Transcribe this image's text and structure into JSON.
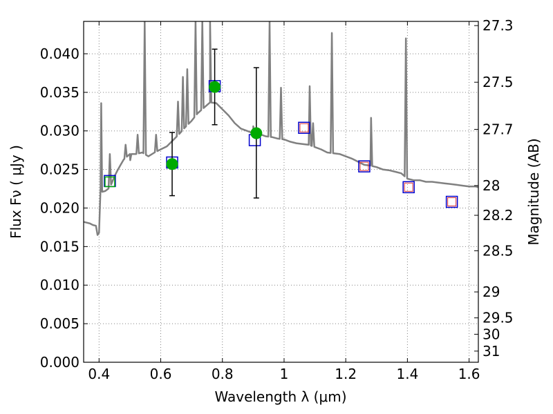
{
  "chart_data": {
    "type": "scatter",
    "xlabel": "Wavelength  λ (μm)",
    "ylabel": "Flux  Fν  ( μJy )",
    "ylabel_right": "Magnitude (AB)",
    "xlim": [
      0.35,
      1.63
    ],
    "ylim": [
      0.0,
      0.0442
    ],
    "grid": true,
    "x_ticks": [
      0.4,
      0.6,
      0.8,
      1.0,
      1.2,
      1.4,
      1.6
    ],
    "x_tick_labels": [
      "0.4",
      "0.6",
      "0.8",
      "1",
      "1.2",
      "1.4",
      "1.6"
    ],
    "y_ticks": [
      0.0,
      0.005,
      0.01,
      0.015,
      0.02,
      0.025,
      0.03,
      0.035,
      0.04
    ],
    "y_tick_labels": [
      "0.000",
      "0.005",
      "0.010",
      "0.015",
      "0.020",
      "0.025",
      "0.030",
      "0.035",
      "0.040"
    ],
    "mag_ticks": [
      "27.3",
      "27.5",
      "27.7",
      "28",
      "28.2",
      "28.5",
      "29",
      "29.5",
      "30",
      "31"
    ],
    "colors": {
      "model": "#808080",
      "observed": "#00aa00",
      "synthetic": "#0000cc",
      "fit": "#dd3333",
      "errorbar": "#000000",
      "grid": "#808080"
    },
    "model_spectrum": {
      "name": "",
      "points": [
        [
          0.35,
          0.0182
        ],
        [
          0.36,
          0.0181
        ],
        [
          0.37,
          0.018
        ],
        [
          0.38,
          0.0178
        ],
        [
          0.39,
          0.0177
        ],
        [
          0.395,
          0.0165
        ],
        [
          0.4,
          0.0168
        ],
        [
          0.405,
          0.0226
        ],
        [
          0.41,
          0.0221
        ],
        [
          0.42,
          0.0222
        ],
        [
          0.43,
          0.0225
        ],
        [
          0.44,
          0.0231
        ],
        [
          0.45,
          0.0241
        ],
        [
          0.46,
          0.0249
        ],
        [
          0.47,
          0.0256
        ],
        [
          0.48,
          0.0263
        ],
        [
          0.5,
          0.027
        ],
        [
          0.52,
          0.027
        ],
        [
          0.54,
          0.0272
        ],
        [
          0.56,
          0.0267
        ],
        [
          0.58,
          0.0272
        ],
        [
          0.6,
          0.0276
        ],
        [
          0.62,
          0.028
        ],
        [
          0.64,
          0.0288
        ],
        [
          0.66,
          0.0296
        ],
        [
          0.68,
          0.0305
        ],
        [
          0.7,
          0.0313
        ],
        [
          0.72,
          0.0323
        ],
        [
          0.74,
          0.033
        ],
        [
          0.76,
          0.0337
        ],
        [
          0.78,
          0.0336
        ],
        [
          0.8,
          0.0328
        ],
        [
          0.82,
          0.032
        ],
        [
          0.84,
          0.031
        ],
        [
          0.86,
          0.0303
        ],
        [
          0.88,
          0.03
        ],
        [
          0.9,
          0.0297
        ],
        [
          0.92,
          0.0296
        ],
        [
          0.94,
          0.0293
        ],
        [
          0.96,
          0.0292
        ],
        [
          0.98,
          0.029
        ],
        [
          1.0,
          0.0289
        ],
        [
          1.02,
          0.0286
        ],
        [
          1.04,
          0.0284
        ],
        [
          1.06,
          0.0283
        ],
        [
          1.08,
          0.0282
        ],
        [
          1.1,
          0.0279
        ],
        [
          1.12,
          0.0276
        ],
        [
          1.14,
          0.0272
        ],
        [
          1.16,
          0.0271
        ],
        [
          1.18,
          0.027
        ],
        [
          1.2,
          0.0267
        ],
        [
          1.22,
          0.0264
        ],
        [
          1.24,
          0.026
        ],
        [
          1.26,
          0.0256
        ],
        [
          1.28,
          0.0255
        ],
        [
          1.3,
          0.0253
        ],
        [
          1.32,
          0.025
        ],
        [
          1.34,
          0.0249
        ],
        [
          1.36,
          0.0247
        ],
        [
          1.38,
          0.0245
        ],
        [
          1.4,
          0.0238
        ],
        [
          1.42,
          0.0236
        ],
        [
          1.44,
          0.0236
        ],
        [
          1.46,
          0.0234
        ],
        [
          1.48,
          0.0234
        ],
        [
          1.5,
          0.0233
        ],
        [
          1.52,
          0.0232
        ],
        [
          1.54,
          0.0231
        ],
        [
          1.56,
          0.023
        ],
        [
          1.58,
          0.0229
        ],
        [
          1.6,
          0.0228
        ],
        [
          1.62,
          0.0228
        ],
        [
          1.63,
          0.0227
        ]
      ],
      "emission_lines": [
        [
          0.407,
          0.0336
        ],
        [
          0.435,
          0.027
        ],
        [
          0.486,
          0.0282
        ],
        [
          0.501,
          0.0262
        ],
        [
          0.525,
          0.0295
        ],
        [
          0.548,
          0.0442
        ],
        [
          0.585,
          0.0295
        ],
        [
          0.656,
          0.0338
        ],
        [
          0.672,
          0.037
        ],
        [
          0.686,
          0.038
        ],
        [
          0.713,
          0.0442
        ],
        [
          0.735,
          0.0442
        ],
        [
          0.76,
          0.0442
        ],
        [
          0.9,
          0.0306
        ],
        [
          0.953,
          0.0442
        ],
        [
          0.99,
          0.0356
        ],
        [
          1.083,
          0.0358
        ],
        [
          1.094,
          0.031
        ],
        [
          1.155,
          0.0427
        ],
        [
          1.282,
          0.0317
        ],
        [
          1.395,
          0.042
        ]
      ]
    },
    "synthetic_photometry": {
      "name": "",
      "x": [
        0.435,
        0.637,
        0.775,
        0.905,
        1.065,
        1.26,
        1.404,
        1.544
      ],
      "y": [
        0.0235,
        0.0259,
        0.0358,
        0.0288,
        0.0304,
        0.0254,
        0.0227,
        0.0208
      ]
    },
    "fit_photometry": {
      "name": "",
      "x": [
        1.065,
        1.26,
        1.404,
        1.544
      ],
      "y": [
        0.0304,
        0.0254,
        0.0227,
        0.0208
      ]
    },
    "observed_photometry": {
      "name": "",
      "x": [
        0.435,
        0.637,
        0.775,
        0.91
      ],
      "y": [
        0.0234,
        0.0257,
        0.0357,
        0.0297
      ],
      "yerr_low": [
        0.0,
        0.0041,
        0.0049,
        0.0084
      ],
      "yerr_high": [
        0.0,
        0.0041,
        0.0049,
        0.0085
      ]
    }
  }
}
